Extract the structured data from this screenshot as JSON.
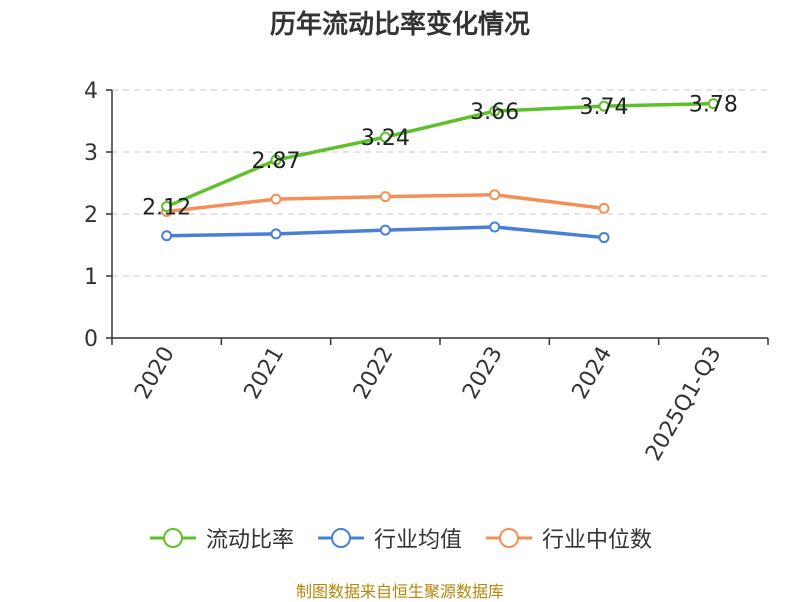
{
  "chart_data": {
    "type": "line",
    "title": "历年流动比率变化情况",
    "categories": [
      "2020",
      "2021",
      "2022",
      "2023",
      "2024",
      "2025Q1-Q3"
    ],
    "ylim": [
      0,
      4
    ],
    "yticks": [
      0,
      1,
      2,
      3,
      4
    ],
    "grid": true,
    "legend_position": "bottom",
    "series": [
      {
        "name": "流动比率",
        "color": "#5ec02a",
        "values": [
          2.12,
          2.87,
          3.24,
          3.66,
          3.74,
          3.78
        ],
        "labels": [
          "2.12",
          "2.87",
          "3.24",
          "3.66",
          "3.74",
          "3.78"
        ]
      },
      {
        "name": "行业均值",
        "color": "#4a7fd6",
        "values": [
          1.65,
          1.68,
          1.74,
          1.79,
          1.62,
          null
        ]
      },
      {
        "name": "行业中位数",
        "color": "#f58f58",
        "values": [
          2.04,
          2.24,
          2.28,
          2.31,
          2.09,
          null
        ]
      }
    ]
  },
  "footer": {
    "source": "制图数据来自恒生聚源数据库"
  }
}
